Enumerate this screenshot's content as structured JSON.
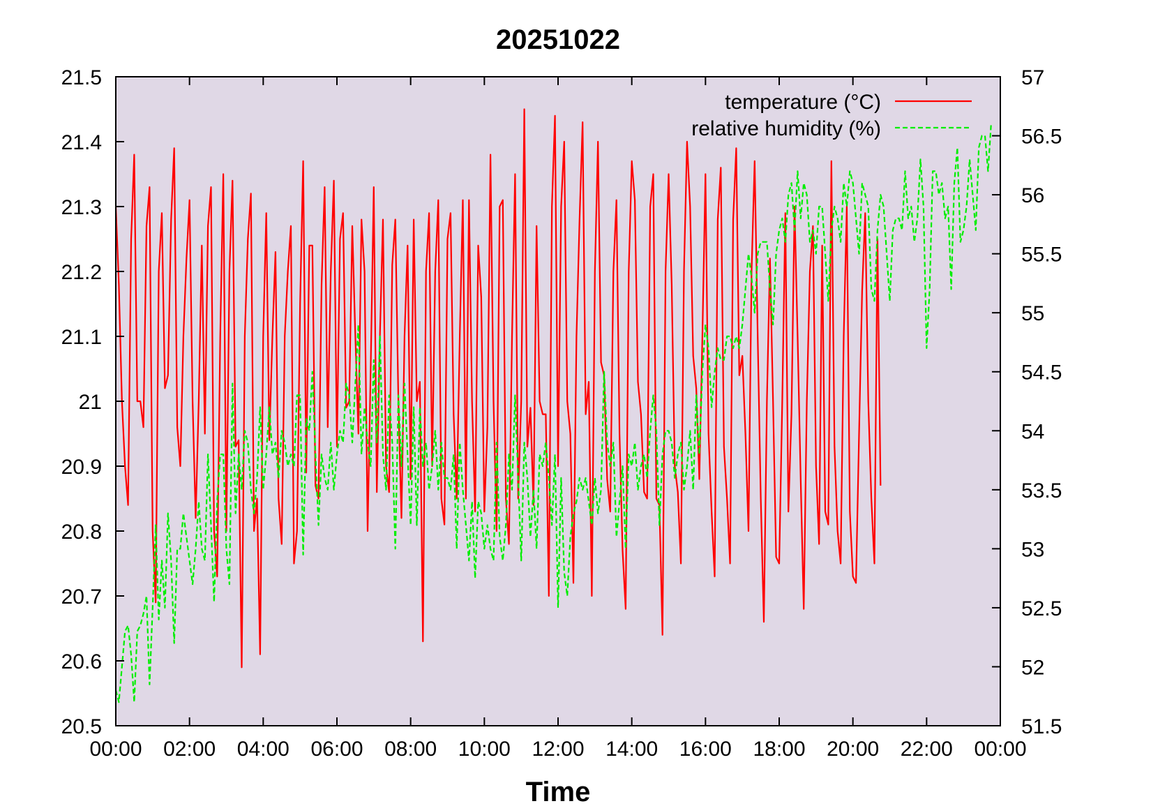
{
  "chart_data": {
    "type": "line",
    "title": "20251022",
    "xlabel": "Time",
    "ylabel": "",
    "y2label": "",
    "xlim": [
      "00:00",
      "24:00"
    ],
    "ylim": [
      20.5,
      21.5
    ],
    "y2lim": [
      51.5,
      57
    ],
    "x_tick_labels": [
      "00:00",
      "02:00",
      "04:00",
      "06:00",
      "08:00",
      "10:00",
      "12:00",
      "14:00",
      "16:00",
      "18:00",
      "20:00",
      "22:00",
      "00:00"
    ],
    "y_tick_labels": [
      "20.5",
      "20.6",
      "20.7",
      "20.8",
      "20.9",
      "21",
      "21.1",
      "21.2",
      "21.3",
      "21.4",
      "21.5"
    ],
    "y2_tick_labels": [
      "51.5",
      "52",
      "52.5",
      "53",
      "53.5",
      "54",
      "54.5",
      "55",
      "55.5",
      "56",
      "56.5",
      "57"
    ],
    "plot_background": "#e0d8e6",
    "legend_position": "top-right",
    "grid": false,
    "x_interval_minutes": 5,
    "series": [
      {
        "name": "temperature (°C)",
        "axis": "left",
        "color": "#ff0000",
        "dash": "solid",
        "values": [
          21.3,
          21.18,
          21.0,
          20.9,
          20.84,
          21.25,
          21.38,
          21.0,
          21.0,
          20.96,
          21.27,
          21.33,
          20.8,
          20.69,
          21.2,
          21.29,
          21.02,
          21.04,
          21.28,
          21.39,
          20.96,
          20.9,
          21.1,
          21.22,
          21.31,
          21.0,
          20.82,
          21.0,
          21.24,
          20.95,
          21.27,
          21.33,
          20.8,
          20.73,
          21.1,
          21.35,
          20.8,
          21.2,
          21.34,
          20.93,
          20.94,
          20.59,
          21.1,
          21.25,
          21.32,
          20.8,
          20.85,
          20.61,
          21.1,
          21.29,
          20.94,
          21.1,
          21.23,
          20.85,
          20.78,
          21.1,
          21.2,
          21.27,
          20.75,
          20.8,
          21.15,
          21.37,
          20.89,
          21.24,
          21.24,
          20.87,
          20.85,
          21.18,
          21.33,
          20.96,
          21.2,
          21.34,
          20.93,
          21.25,
          21.29,
          20.99,
          21.0,
          21.27,
          21.1,
          20.95,
          21.28,
          21.2,
          20.8,
          21.05,
          21.33,
          20.86,
          21.1,
          21.28,
          20.9,
          20.86,
          21.21,
          21.28,
          21.0,
          20.82,
          21.1,
          21.24,
          20.88,
          21.28,
          21.0,
          21.03,
          20.63,
          21.2,
          21.29,
          20.9,
          21.2,
          21.31,
          20.85,
          20.81,
          21.25,
          21.29,
          20.98,
          20.85,
          21.1,
          21.31,
          20.85,
          21.31,
          21.0,
          20.83,
          21.24,
          21.16,
          20.83,
          20.96,
          21.38,
          21.0,
          20.8,
          21.3,
          21.31,
          20.85,
          20.78,
          21.1,
          21.35,
          20.85,
          21.0,
          21.45,
          20.93,
          20.99,
          20.84,
          21.27,
          21.0,
          20.98,
          20.98,
          20.7,
          21.3,
          21.44,
          20.9,
          21.3,
          21.4,
          21.0,
          20.95,
          20.72,
          21.1,
          21.28,
          21.43,
          20.98,
          21.03,
          20.7,
          21.2,
          21.4,
          21.06,
          21.04,
          20.88,
          20.83,
          21.2,
          21.31,
          20.95,
          20.77,
          20.68,
          21.2,
          21.37,
          21.31,
          21.03,
          20.98,
          20.86,
          20.85,
          21.3,
          21.35,
          20.85,
          20.84,
          20.64,
          21.2,
          21.35,
          21.18,
          20.9,
          20.86,
          20.75,
          21.2,
          21.4,
          21.3,
          21.07,
          21.02,
          20.88,
          21.1,
          21.35,
          20.95,
          20.83,
          20.73,
          21.28,
          21.36,
          20.93,
          20.85,
          20.75,
          21.28,
          21.39,
          21.04,
          21.07,
          20.95,
          20.8,
          21.2,
          21.37,
          21.1,
          20.85,
          20.66,
          21.0,
          21.22,
          21.0,
          20.76,
          20.75,
          21.0,
          21.29,
          20.83,
          20.98,
          21.3,
          21.1,
          20.88,
          20.68,
          21.0,
          21.2,
          21.27,
          20.9,
          20.78,
          21.24,
          20.83,
          20.81,
          21.37,
          20.93,
          20.8,
          20.75,
          21.1,
          21.3,
          20.83,
          20.73,
          20.72,
          20.95,
          21.17,
          21.29,
          21.0,
          20.85,
          20.75,
          21.25,
          20.87
        ]
      },
      {
        "name": "relative humidity (%)",
        "axis": "right",
        "color": "#00ee00",
        "dash": "dashed",
        "values": [
          51.8,
          51.7,
          52.0,
          52.3,
          52.35,
          52.1,
          51.7,
          52.3,
          52.35,
          52.45,
          52.6,
          51.85,
          52.5,
          53.2,
          52.4,
          52.9,
          52.5,
          53.3,
          52.9,
          52.2,
          53.0,
          53.0,
          53.3,
          53.1,
          52.9,
          52.7,
          53.0,
          53.4,
          53.0,
          52.9,
          53.8,
          53.2,
          52.55,
          53.4,
          53.8,
          53.8,
          53.0,
          52.7,
          54.4,
          53.3,
          53.8,
          53.5,
          54.0,
          53.9,
          53.5,
          53.3,
          53.6,
          54.2,
          53.5,
          53.8,
          54.2,
          53.8,
          53.9,
          53.6,
          54.0,
          53.9,
          53.7,
          53.8,
          53.7,
          54.3,
          54.3,
          52.95,
          54.1,
          54.0,
          54.5,
          53.8,
          53.2,
          53.8,
          53.6,
          53.5,
          53.9,
          53.5,
          53.8,
          54.0,
          53.9,
          54.4,
          54.3,
          53.9,
          54.4,
          54.9,
          53.8,
          54.2,
          53.9,
          53.7,
          54.6,
          53.9,
          54.8,
          53.8,
          53.5,
          54.3,
          53.9,
          53.0,
          54.3,
          53.7,
          54.4,
          53.8,
          53.2,
          54.2,
          53.2,
          54.2,
          53.7,
          53.9,
          53.5,
          53.7,
          54.0,
          53.5,
          53.9,
          53.6,
          53.6,
          53.5,
          53.8,
          53.0,
          53.9,
          53.5,
          53.2,
          52.9,
          53.4,
          52.75,
          53.4,
          53.3,
          53.0,
          53.2,
          53.0,
          52.9,
          53.9,
          53.1,
          52.9,
          53.2,
          53.8,
          53.5,
          54.3,
          53.6,
          52.9,
          53.9,
          53.6,
          53.1,
          53.5,
          53.0,
          53.8,
          53.7,
          53.9,
          53.6,
          53.2,
          53.8,
          52.5,
          53.6,
          52.8,
          52.6,
          53.1,
          53.3,
          53.4,
          53.6,
          53.5,
          53.6,
          53.4,
          53.2,
          53.6,
          53.3,
          53.5,
          54.5,
          53.9,
          53.7,
          53.9,
          53.1,
          53.4,
          53.7,
          53.0,
          53.8,
          53.7,
          53.9,
          53.5,
          53.7,
          53.8,
          53.6,
          54.0,
          54.3,
          54.0,
          53.2,
          53.8,
          54.0,
          54.0,
          53.9,
          53.6,
          53.8,
          53.9,
          53.5,
          53.7,
          54.0,
          53.5,
          54.3,
          53.8,
          54.5,
          54.9,
          54.7,
          54.2,
          54.5,
          54.7,
          54.6,
          54.6,
          54.8,
          54.8,
          54.7,
          54.8,
          54.7,
          54.9,
          55.2,
          55.5,
          55.3,
          55.0,
          55.5,
          55.6,
          55.6,
          55.6,
          55.2,
          54.9,
          55.5,
          55.7,
          55.8,
          55.6,
          56.0,
          56.1,
          55.7,
          56.2,
          55.8,
          56.1,
          56.0,
          55.6,
          55.7,
          55.5,
          55.9,
          55.9,
          55.5,
          55.1,
          55.7,
          55.9,
          55.8,
          55.6,
          56.1,
          55.9,
          56.2,
          56.1,
          55.8,
          55.5,
          56.1,
          56.0,
          55.9,
          55.2,
          55.1,
          55.7,
          56.0,
          55.9,
          55.5,
          55.1,
          55.7,
          55.8,
          55.8,
          55.7,
          56.2,
          55.8,
          55.9,
          55.6,
          55.8,
          56.3,
          55.9,
          54.7,
          55.2,
          56.2,
          56.2,
          56.0,
          56.1,
          55.8,
          55.9,
          55.2,
          56.1,
          56.4,
          55.6,
          55.7,
          55.9,
          56.3,
          56.0,
          55.7,
          56.4,
          56.5,
          56.5,
          56.2,
          56.6
        ]
      }
    ]
  }
}
